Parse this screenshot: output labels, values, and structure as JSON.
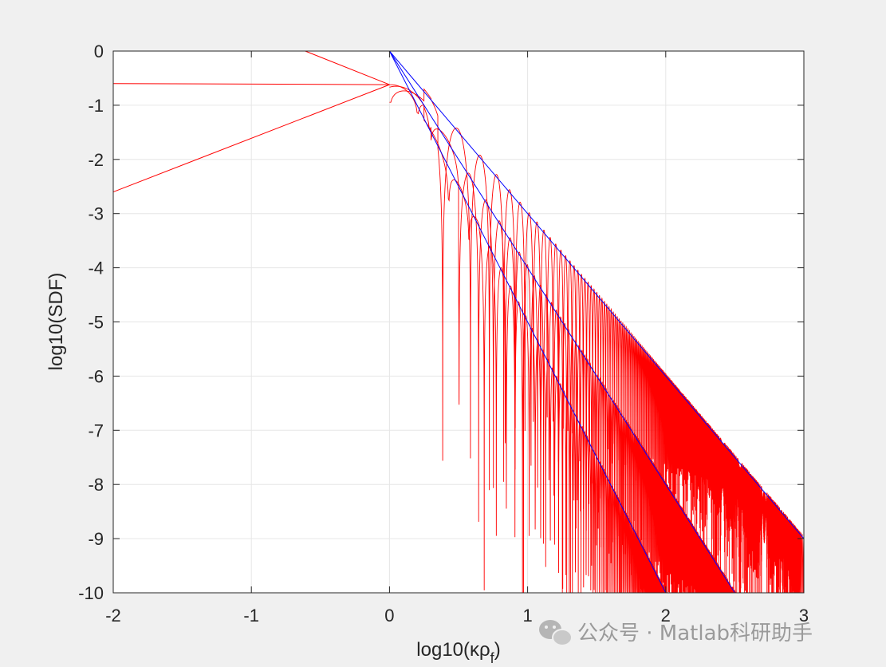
{
  "chart_data": {
    "type": "line",
    "xlabel": "log10(κρ_f)",
    "xlabel_main": "log10(κρ",
    "xlabel_sub": "f",
    "xlabel_tail": ")",
    "ylabel": "log10(SDF)",
    "xlim": [
      -2,
      3
    ],
    "ylim": [
      -10,
      0
    ],
    "xticks": [
      -2,
      -1,
      0,
      1,
      2,
      3
    ],
    "yticks": [
      0,
      -1,
      -2,
      -3,
      -4,
      -5,
      -6,
      -7,
      -8,
      -9,
      -10
    ],
    "xtick_labels": [
      "-2",
      "-1",
      "0",
      "1",
      "2",
      "3"
    ],
    "ytick_labels": [
      "0",
      "-1",
      "-2",
      "-3",
      "-4",
      "-5",
      "-6",
      "-7",
      "-8",
      "-9",
      "-10"
    ],
    "grid": true,
    "series": [
      {
        "color": "#ff0000",
        "style": "oscillating spectral density, three curves",
        "low_k_asymptotes": [
          {
            "x": [
              -0.61,
              0.0
            ],
            "y": [
              0.0,
              -0.62
            ]
          },
          {
            "x": [
              -2,
              0.0
            ],
            "y": [
              -0.6,
              -0.62
            ]
          },
          {
            "x": [
              -2,
              0.0
            ],
            "y": [
              -2.6,
              -0.62
            ]
          }
        ],
        "envelope_slopes": [
          -3,
          -4,
          -5
        ],
        "approx_first_nulls_x": [
          0.4,
          0.55,
          0.7
        ]
      },
      {
        "color": "#0000ff",
        "style": "high-k asymptotes",
        "lines": [
          {
            "x": [
              0,
              3
            ],
            "y": [
              0,
              -9
            ]
          },
          {
            "x": [
              0,
              2.5
            ],
            "y": [
              0,
              -10
            ]
          },
          {
            "x": [
              0,
              2
            ],
            "y": [
              0,
              -10
            ]
          }
        ]
      }
    ]
  },
  "watermark": {
    "text": "公众号 · Matlab科研助手",
    "icon": "wechat-icon"
  },
  "colors": {
    "curve": "#ff0000",
    "asymptote": "#0000ff",
    "grid": "#e6e6e6",
    "axes_bg": "#ffffff",
    "figure_bg": "#f0f0f0",
    "axis_line": "#262626"
  }
}
